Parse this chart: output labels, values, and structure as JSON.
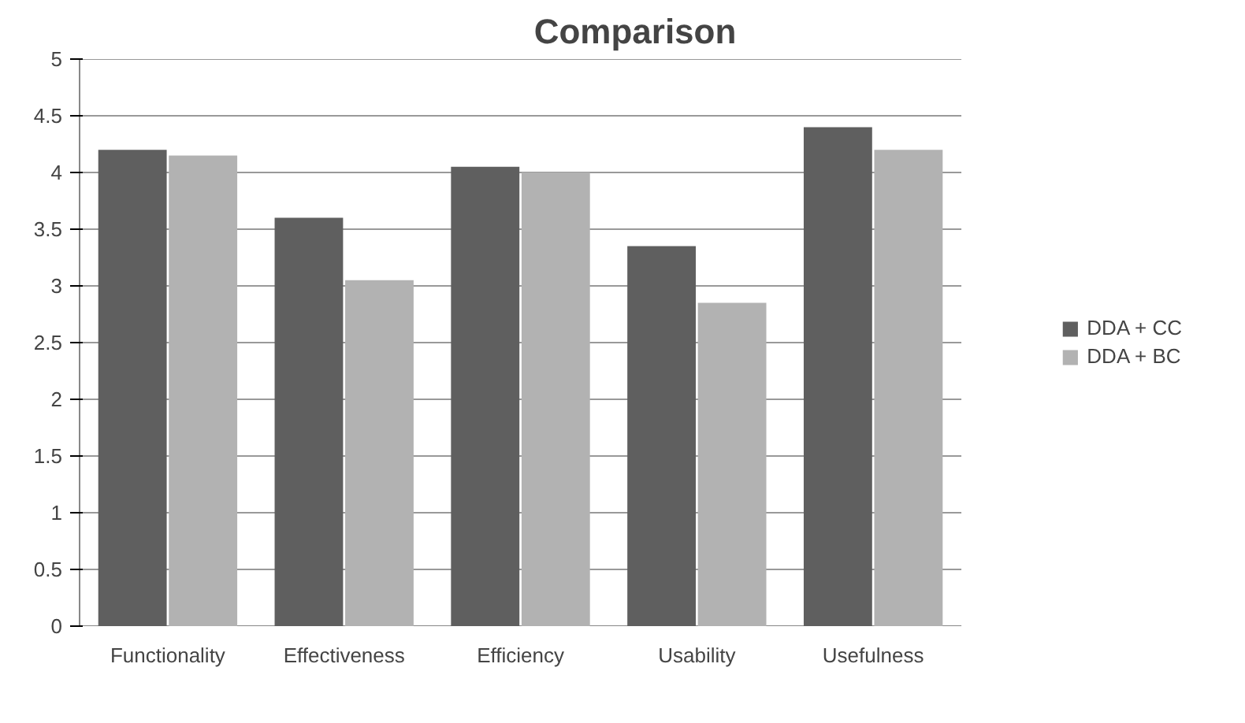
{
  "chart_data": {
    "type": "bar",
    "title": "Comparison",
    "categories": [
      "Functionality",
      "Effectiveness",
      "Efficiency",
      "Usability",
      "Usefulness"
    ],
    "series": [
      {
        "name": "DDA + CC",
        "color": "#5f5f5f",
        "values": [
          4.2,
          3.6,
          4.05,
          3.35,
          4.4
        ]
      },
      {
        "name": "DDA + BC",
        "color": "#b2b2b2",
        "values": [
          4.15,
          3.05,
          4.0,
          2.85,
          4.2
        ]
      }
    ],
    "ylim": [
      0,
      5
    ],
    "yticks": [
      0,
      {
        "value": 0.5,
        "label": "0.5"
      },
      1,
      {
        "value": 1.5,
        "label": "1.5"
      },
      2,
      {
        "value": 2.5,
        "label": "2.5"
      },
      3,
      {
        "value": 3.5,
        "label": "3.5"
      },
      4,
      {
        "value": 4.5,
        "label": "4.5"
      },
      5
    ],
    "grid": "y",
    "legend": "right"
  }
}
